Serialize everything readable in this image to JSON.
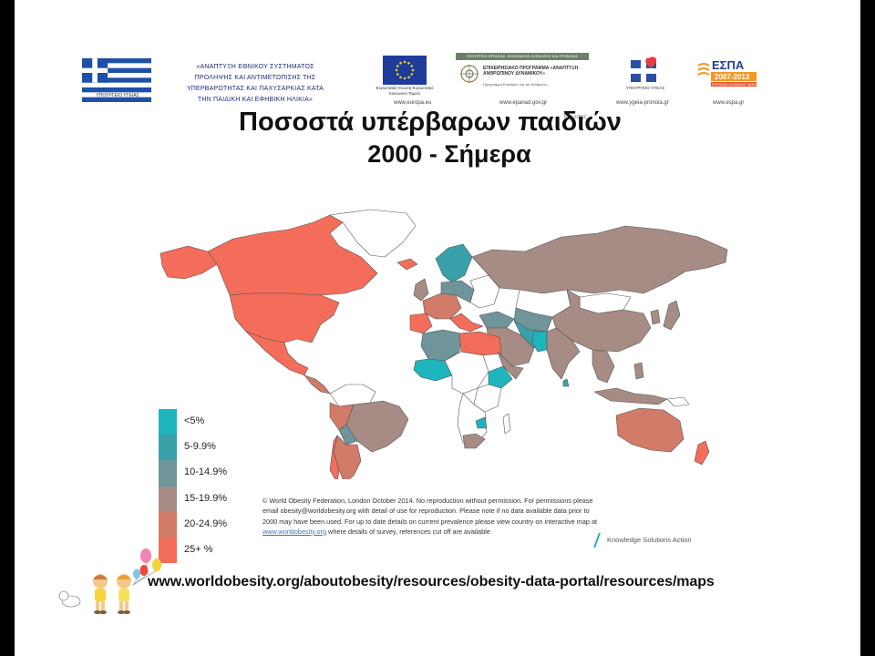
{
  "header": {
    "flag_caption": "ΥΠΟΥΡΓΕΙΟ ΥΓΕΙΑΣ",
    "program_lines": [
      "«ΑΝΑΠΤΥΞΗ ΕΘΝΙΚΟΥ ΣΥΣΤΗΜΑΤΟΣ",
      "ΠΡΟΛΗΨΗΣ ΚΑΙ ΑΝΤΙΜΕΤΩΠΙΣΗΣ ΤΗΣ",
      "ΥΠΕΡΒΑΡΟΤΗΤΑΣ ΚΑΙ ΠΑΧΥΣΑΡΚΙΑΣ ΚΑΤΑ",
      "ΤΗΝ ΠΑΙΔΙΚΗ ΚΑΙ ΕΦΗΒΙΚΗ ΗΛΙΚΙΑ»"
    ],
    "eu_caption": "Ευρωπαϊκή Ένωση Ευρωπαϊκό Κοινωνικό Ταμείο",
    "ep_bar": "ΥΠΟΥΡΓΕΙΟ ΕΡΓΑΣΙΑΣ, ΚΟΙΝΩΝΙΚΗΣ ΑΣΦΑΛΙΣΗΣ ΚΑΙ ΠΡΟΝΟΙΑΣ",
    "ep_text": "ΕΠΙΧΕΙΡΗΣΙΑΚΟ ΠΡΟΓΡΑΜΜΑ «ΑΝΑΠΤΥΞΗ ΑΝΘΡΩΠΙΝΟΥ ΔΥΝΑΜΙΚΟΥ»",
    "ep_sub": "Πρόγραμμα Ευκαιρίες για τον Άνθρωπο",
    "health_caption": "ΥΠΟΥΡΓΕΙΟ ΥΓΕΙΑΣ",
    "espa_label": "ΕΣΠΑ",
    "espa_years": "2007-2013",
    "espa_sub": "ΕΥΡΩΠΑΪΚΟ ΚΟΙΝΩΝΙΚΟ ΤΑΜΕΙΟ",
    "urls": [
      "www.europa.eu",
      "www.epanad.gov.gr",
      "www.ygeia-pronoia.gr",
      "www.espa.gr"
    ],
    "faint_sub": "Ένωσης"
  },
  "title": {
    "line1": "Ποσοστά υπέρβαρων παιδιών",
    "line2": "2000 - Σήμερα"
  },
  "legend": [
    {
      "label": "<5%",
      "color": "#1fb5bd"
    },
    {
      "label": "5-9.9%",
      "color": "#3aa1aa"
    },
    {
      "label": "10-14.9%",
      "color": "#6f9499"
    },
    {
      "label": "15-19.9%",
      "color": "#a68c84"
    },
    {
      "label": "20-24.9%",
      "color": "#d27b68"
    },
    {
      "label": "25+ %",
      "color": "#f46d5a"
    }
  ],
  "copyright": {
    "before_link": "© World Obesity Federation, London October 2014.   No reproduction without permission.  For permissions please email obesity@worldobesity.org with detail of use for reproduction. Please note if no data available data prior to 2000 may have been used.  For up to date details on current prevalence please view country on interactive map at ",
    "link": "www.worldobesity.org",
    "after_link": " where details of survey, references cut off are available"
  },
  "knowledge_label": "Knowledge Solutions Action",
  "source_url": "www.worldobesity.org/aboutobesity/resources/obesity-data-portal/resources/maps"
}
